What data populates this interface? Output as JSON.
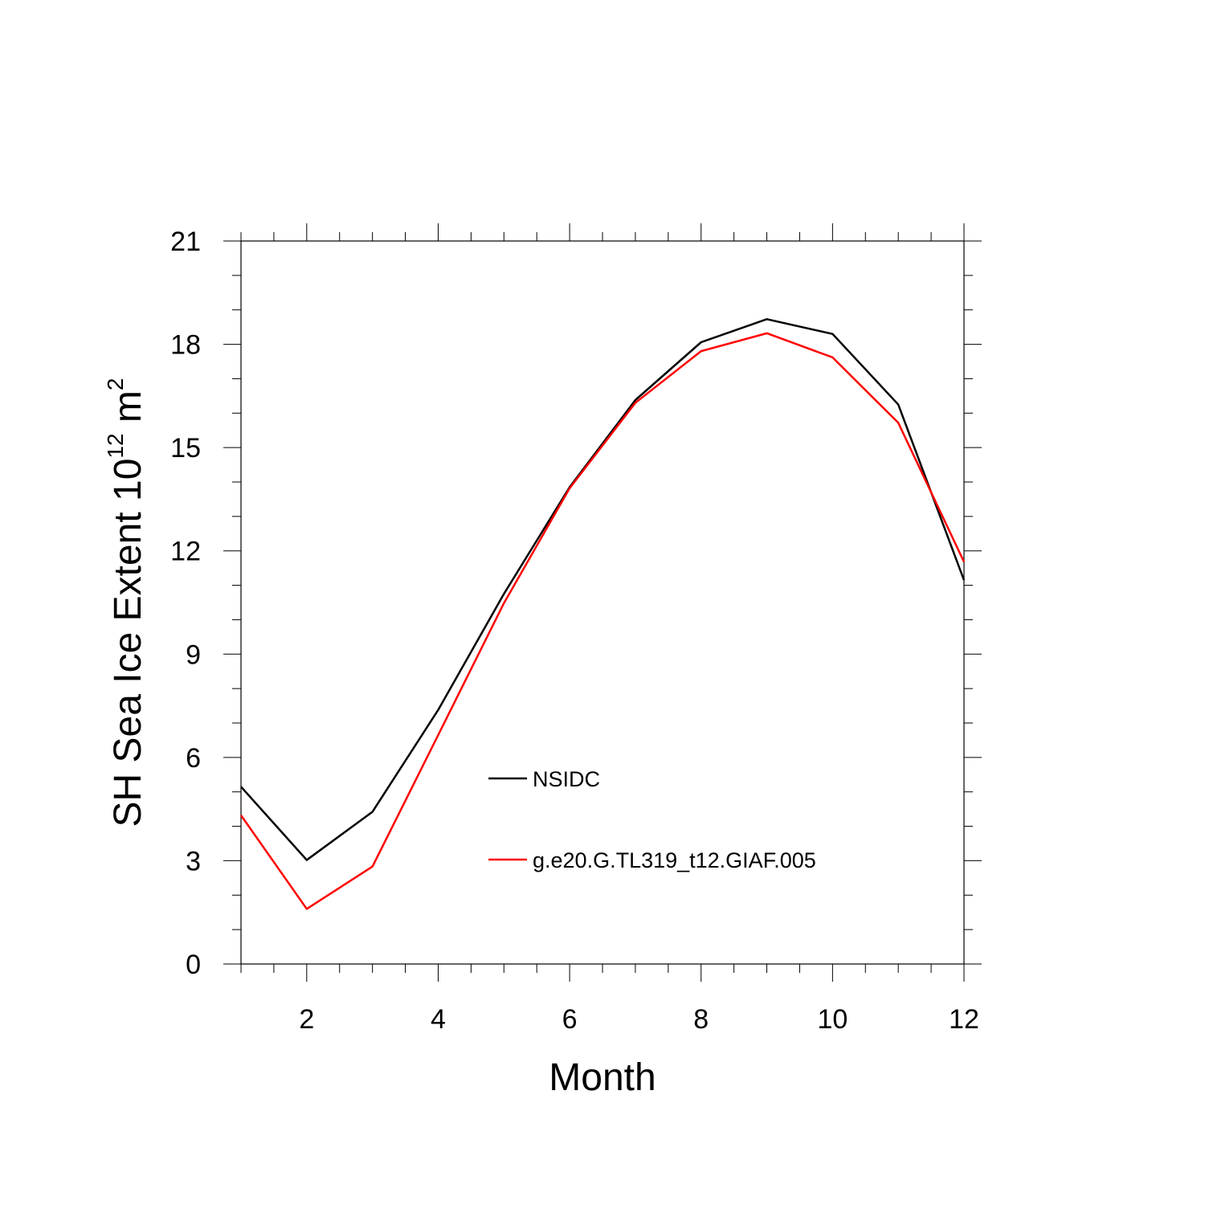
{
  "chart_data": {
    "type": "line",
    "title": "",
    "xlabel": "Month",
    "ylabel": {
      "prefix": "SH Sea Ice Extent 10",
      "exponent": "12",
      "unit": " m",
      "unit_exponent": "2"
    },
    "xlim": [
      1,
      12
    ],
    "ylim": [
      0,
      21
    ],
    "x": [
      1,
      2,
      3,
      4,
      5,
      6,
      7,
      8,
      9,
      10,
      11,
      12
    ],
    "x_ticks": [
      2,
      4,
      6,
      8,
      10,
      12
    ],
    "x_tick_labels": [
      "2",
      "4",
      "6",
      "8",
      "10",
      "12"
    ],
    "y_ticks": [
      0,
      3,
      6,
      9,
      12,
      15,
      18,
      21
    ],
    "y_tick_labels": [
      "0",
      "3",
      "6",
      "9",
      "12",
      "15",
      "18",
      "21"
    ],
    "grid": false,
    "legend_position": "center",
    "series": [
      {
        "name": "NSIDC",
        "color": "#000000",
        "values": [
          5.15,
          3.02,
          4.42,
          7.38,
          10.75,
          13.85,
          16.38,
          18.06,
          18.73,
          18.3,
          16.25,
          11.15
        ]
      },
      {
        "name": "g.e20.G.TL319_t12.GIAF.005",
        "color": "#ff0000",
        "values": [
          4.32,
          1.6,
          2.83,
          6.65,
          10.48,
          13.82,
          16.3,
          17.8,
          18.32,
          17.62,
          15.72,
          11.68
        ]
      }
    ]
  }
}
